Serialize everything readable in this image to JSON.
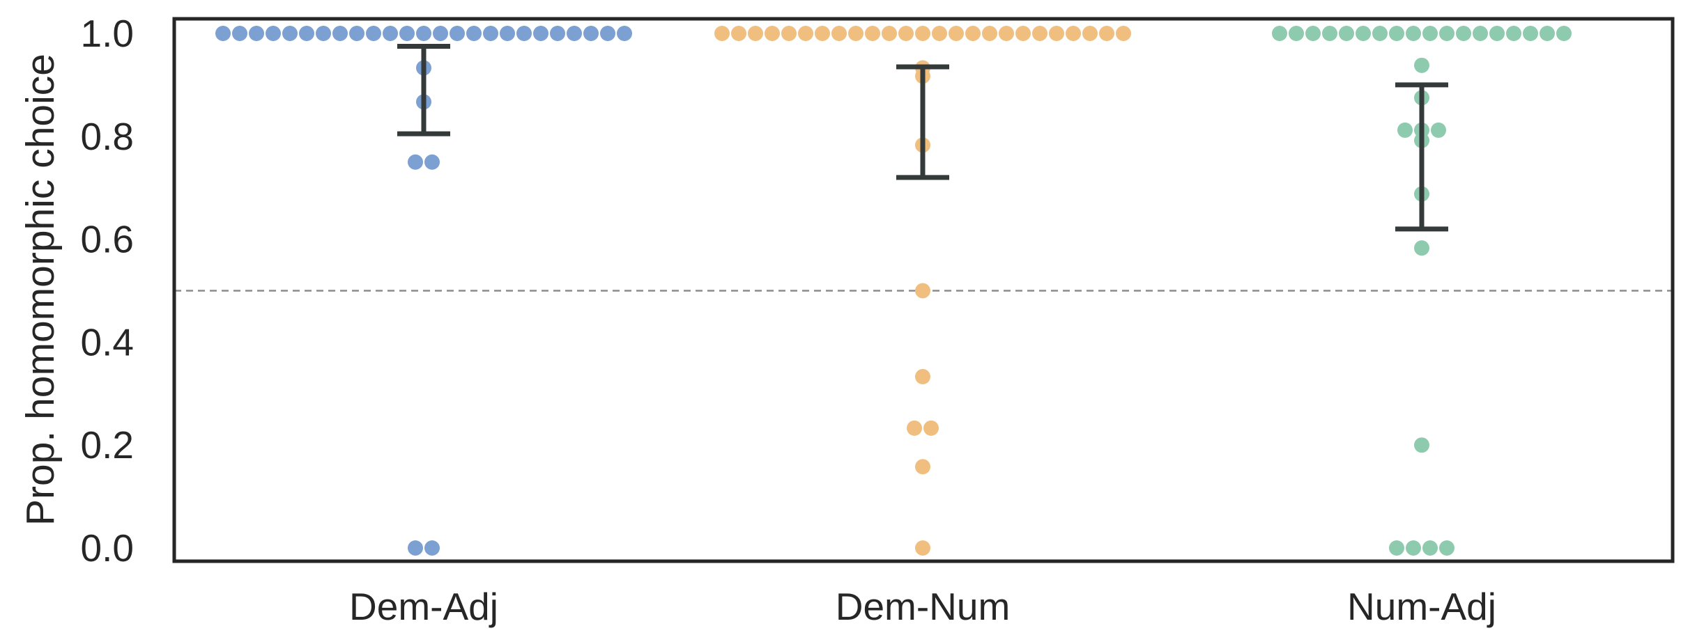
{
  "chart_data": {
    "type": "scatter",
    "subtype": "swarm with mean and error bars",
    "title": "",
    "xlabel": "",
    "ylabel": "Prop. homomorphic choice",
    "ylim": [
      0,
      1
    ],
    "yticks": [
      "0.0",
      "0.2",
      "0.4",
      "0.6",
      "0.8",
      "1.0"
    ],
    "categories": [
      "Dem-Adj",
      "Dem-Num",
      "Num-Adj"
    ],
    "reference_line": {
      "y": 0.5,
      "style": "dashed",
      "color": "#8c8c8c"
    },
    "grid": false,
    "legend": "none",
    "series": [
      {
        "category": "Dem-Adj",
        "color": "#7da0d2",
        "values": [
          1,
          1,
          1,
          1,
          1,
          1,
          1,
          1,
          1,
          1,
          1,
          1,
          1,
          1,
          1,
          1,
          1,
          1,
          1,
          1,
          1,
          1,
          1,
          1,
          1,
          0.933,
          0.867,
          0.75,
          0.75,
          0,
          0
        ],
        "mean": 0.89,
        "error": [
          0.805,
          0.975
        ]
      },
      {
        "category": "Dem-Num",
        "color": "#f0bf80",
        "values": [
          1,
          1,
          1,
          1,
          1,
          1,
          1,
          1,
          1,
          1,
          1,
          1,
          1,
          1,
          1,
          1,
          1,
          1,
          1,
          1,
          1,
          1,
          1,
          1,
          1,
          0.933,
          0.917,
          0.783,
          0.5,
          0.333,
          0.233,
          0.233,
          0.158,
          0
        ],
        "mean": 0.83,
        "error": [
          0.72,
          0.935
        ]
      },
      {
        "category": "Num-Adj",
        "color": "#8ecbae",
        "values": [
          1,
          1,
          1,
          1,
          1,
          1,
          1,
          1,
          1,
          1,
          1,
          1,
          1,
          1,
          1,
          1,
          1,
          1,
          0.938,
          0.875,
          0.812,
          0.812,
          0.812,
          0.792,
          0.688,
          0.583,
          0.2,
          0,
          0,
          0,
          0
        ],
        "mean": 0.76,
        "error": [
          0.62,
          0.9
        ]
      }
    ],
    "errorbar_color": "#343a3a"
  }
}
